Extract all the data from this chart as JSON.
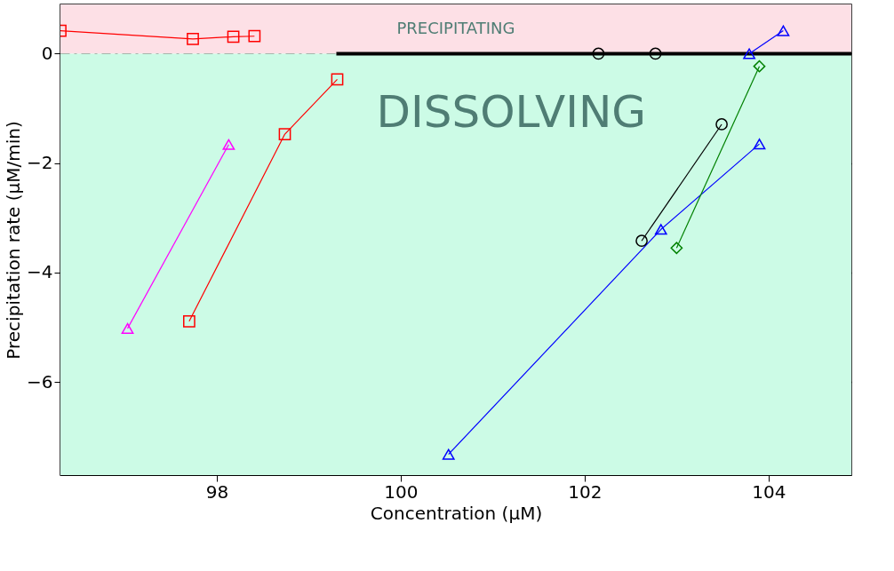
{
  "chart_data": {
    "type": "line",
    "xlabel": "Concentration (μM)",
    "ylabel": "Precipitation rate (μM/min)",
    "xlim": [
      96.3,
      104.9
    ],
    "ylim": [
      -7.7,
      0.9
    ],
    "xticks": [
      98,
      100,
      102,
      104
    ],
    "yticks": [
      0,
      -2,
      -4,
      -6
    ],
    "grid": "y",
    "bands": [
      {
        "axis": "y",
        "from": 0,
        "to": 0.9,
        "label": "PRECIPITATING",
        "color": "#fde0e6"
      },
      {
        "axis": "y",
        "from": -7.7,
        "to": 0,
        "label": "DISSOLVING",
        "color": "#ccfbe6"
      }
    ],
    "series": [
      {
        "color": "#000000",
        "marker": "none",
        "x": [
          99.3,
          101.3,
          104.25,
          104.9
        ],
        "values": [
          0,
          0,
          0,
          0
        ]
      },
      {
        "color": "#ff0000",
        "marker": "square",
        "x": [
          96.3,
          97.74,
          98.18,
          98.41
        ],
        "values": [
          0.42,
          0.27,
          0.31,
          0.32
        ]
      },
      {
        "color": "#ff0000",
        "marker": "square",
        "x": [
          97.7,
          98.74,
          99.31
        ],
        "values": [
          -4.89,
          -1.47,
          -0.47
        ]
      },
      {
        "color": "#ff00ff",
        "marker": "triangle",
        "x": [
          97.03,
          98.13
        ],
        "values": [
          -5.02,
          -1.66
        ]
      },
      {
        "color": "#0000ff",
        "marker": "triangle",
        "x": [
          100.52,
          102.83,
          103.9
        ],
        "values": [
          -7.32,
          -3.21,
          -1.65
        ]
      },
      {
        "color": "#000000",
        "marker": "circle",
        "x": [
          102.62,
          103.49
        ],
        "values": [
          -3.42,
          -1.29
        ]
      },
      {
        "color": "#008000",
        "marker": "diamond",
        "x": [
          103.0,
          103.9
        ],
        "values": [
          -3.55,
          -0.23
        ]
      },
      {
        "color": "#0000ff",
        "marker": "triangle",
        "x": [
          103.79,
          104.16
        ],
        "values": [
          0.0,
          0.42
        ]
      },
      {
        "type": "scatter",
        "color": "#000000",
        "marker": "circle",
        "x": [
          102.15,
          102.77
        ],
        "values": [
          0,
          0
        ]
      }
    ]
  }
}
